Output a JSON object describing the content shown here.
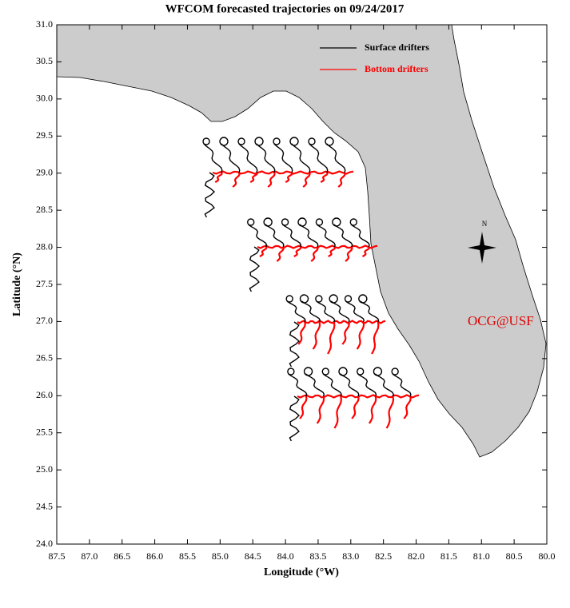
{
  "map": {
    "title": "WFCOM forecasted trajectories on 09/24/2017",
    "xlabel": "Longitude (°W)",
    "ylabel": "Latitude (°N)",
    "xlim": [
      87.5,
      80
    ],
    "ylim": [
      24,
      31
    ],
    "xticks": [
      87.5,
      {
        "value": 87,
        "label": "87.0"
      },
      86.5,
      {
        "value": 86,
        "label": "86.0"
      },
      85.5,
      {
        "value": 85,
        "label": "85.0"
      },
      84.5,
      {
        "value": 84,
        "label": "84.0"
      },
      83.5,
      {
        "value": 83,
        "label": "83.0"
      },
      82.5,
      {
        "value": 82,
        "label": "82.0"
      },
      81.5,
      {
        "value": 81,
        "label": "81.0"
      },
      80.5,
      {
        "value": 80,
        "label": "80.0"
      }
    ],
    "yticks": [
      {
        "value": 24,
        "label": "24.0"
      },
      24.5,
      {
        "value": 25,
        "label": "25.0"
      },
      25.5,
      {
        "value": 26,
        "label": "26.0"
      },
      26.5,
      {
        "value": 27,
        "label": "27.0"
      },
      27.5,
      {
        "value": 28,
        "label": "28.0"
      },
      28.5,
      {
        "value": 29,
        "label": "29.0"
      },
      29.5,
      {
        "value": 30,
        "label": "30.0"
      },
      30.5,
      {
        "value": 31,
        "label": "31.0"
      }
    ],
    "legend": [
      {
        "name": "Surface drifters",
        "color": "#000000"
      },
      {
        "name": "Bottom drifters",
        "color": "#ff0000"
      }
    ],
    "annotation": "OCG@USF",
    "compass": "N"
  }
}
